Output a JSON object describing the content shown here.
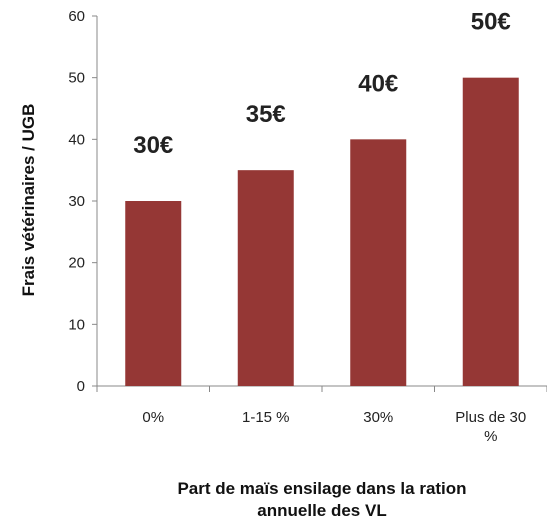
{
  "chart_data": {
    "type": "bar",
    "categories": [
      "0%",
      "1-15 %",
      "30%",
      "Plus de 30 %"
    ],
    "values": [
      30,
      35,
      40,
      50
    ],
    "value_labels": [
      "30€",
      "35€",
      "40€",
      "50€"
    ],
    "color": "#953735",
    "ylabel": "Frais vétérinaires / UGB",
    "xlabel": [
      "Part de maïs ensilage dans la ration",
      "annuelle des VL"
    ],
    "ylim": [
      0,
      60
    ],
    "yticks": [
      0,
      10,
      20,
      30,
      40,
      50,
      60
    ],
    "grid": false
  }
}
